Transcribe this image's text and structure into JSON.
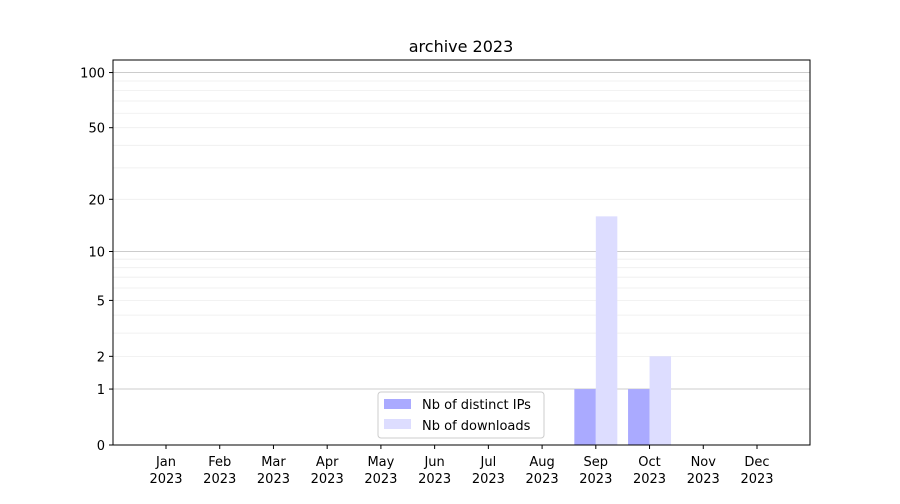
{
  "chart_data": {
    "type": "bar",
    "title": "archive 2023",
    "xlabel": "",
    "ylabel": "",
    "yscale": "log(1+y)",
    "ylim": [
      0,
      117
    ],
    "yticks": [
      0,
      1,
      2,
      5,
      10,
      20,
      50,
      100
    ],
    "grid": true,
    "legend": "lower-center",
    "categories": [
      "Jan\n2023",
      "Feb\n2023",
      "Mar\n2023",
      "Apr\n2023",
      "May\n2023",
      "Jun\n2023",
      "Jul\n2023",
      "Aug\n2023",
      "Sep\n2023",
      "Oct\n2023",
      "Nov\n2023",
      "Dec\n2023"
    ],
    "series": [
      {
        "name": "Nb of distinct IPs",
        "color": "#aaaaff",
        "values": [
          0,
          0,
          0,
          0,
          0,
          0,
          0,
          0,
          1,
          1,
          0,
          0
        ]
      },
      {
        "name": "Nb of downloads",
        "color": "#ddddff",
        "values": [
          0,
          0,
          0,
          0,
          0,
          0,
          0,
          0,
          16,
          2,
          0,
          0
        ]
      }
    ]
  }
}
